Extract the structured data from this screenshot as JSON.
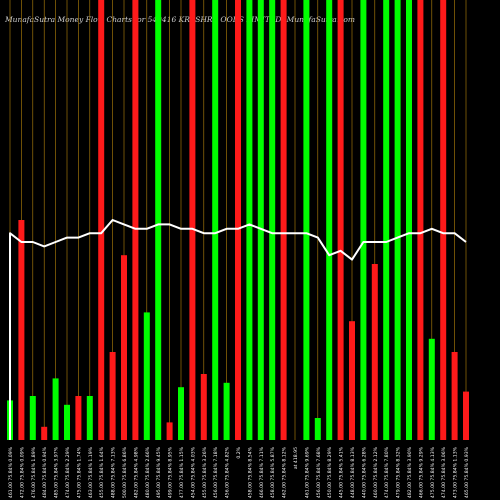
{
  "title": "MunafaSutra  Money Flow  Charts for 540416                             KRI                                  SHRE       OODS LIMITED) MunafaSutra.com",
  "colors": {
    "background": "#000000",
    "up": "#00ff00",
    "down": "#ff1a1a",
    "grid": "#b8860b",
    "line": "#ffffff",
    "text": "#ffffff"
  },
  "chart_data": {
    "type": "bar",
    "title": "MunafaSutra  Money Flow  Charts for 540416                             KRI                                  SHRE       OODS LIMITED) MunafaSutra.com",
    "xlabel": "",
    "ylabel": "",
    "ylim": [
      0,
      100
    ],
    "grid": "vertical",
    "categories": [
      "461.00 75.84% 0.09%",
      "472.00 75.84% 0.09%",
      "476.00 75.84% 1.89%",
      "484.00 75.84% 0.94%",
      "485.00 75.84% 3.97%",
      "474.00 75.84% 2.29%",
      "475.00 75.84% 1.74%",
      "463.00 75.84% 1.19%",
      "455.00 75.84% 1.64%",
      "488.00 75.84% 7.13%",
      "500.00 75.84% 6.86%",
      "482.00 75.84% 4.98%",
      "480.00 75.84% 2.66%",
      "495.00 75.84% 9.45%",
      "499.00 75.84% 8.95%",
      "477.00 75.84% 1.15%",
      "454.00 75.84% 4.03%",
      "455.00 75.84% 3.26%",
      "456.00 75.84% 7.18%",
      "456.00 75.84% 4.82%",
      "0.2%",
      "458.00 75.84% 8.54%",
      "466.00 75.84% 7.11%",
      "458.00 75.84% 5.87%",
      "462.00 75.84% 8.12%",
      "at 418.95",
      "461.00 75.84% 9.69%",
      "456.00 75.84% 7.68%",
      "450.00 75.84% 8.29%",
      "445.00 75.84% 5.41%",
      "448.00 75.84% 8.13%",
      "440.00 75.84% 6.28%",
      "460.00 75.84% 2.12%",
      "474.00 75.84% 7.80%",
      "479.00 75.84% 8.32%",
      "482.00 75.84% 3.90%",
      "466.00 75.84% 9.29%",
      "475.00 75.84% 4.13%",
      "474.00 75.84% 3.06%",
      "473.00 75.84% 1.13%",
      "465.00 75.84% 0.93%"
    ],
    "series": [
      {
        "values": [
          9,
          50,
          10,
          3,
          14,
          8,
          10,
          10,
          100,
          20,
          42,
          100,
          29,
          100,
          4,
          12,
          100,
          15,
          100,
          13,
          100,
          100,
          100,
          100,
          100,
          0,
          100,
          5,
          100,
          100,
          27,
          100,
          40,
          100,
          100,
          100,
          100,
          23,
          100,
          20,
          11
        ],
        "directions": [
          "up",
          "down",
          "up",
          "down",
          "up",
          "up",
          "down",
          "up",
          "down",
          "down",
          "down",
          "down",
          "up",
          "up",
          "down",
          "up",
          "down",
          "down",
          "up",
          "up",
          "down",
          "up",
          "up",
          "up",
          "down",
          "up",
          "up",
          "up",
          "up",
          "down",
          "down",
          "up",
          "down",
          "up",
          "up",
          "up",
          "down",
          "up",
          "down",
          "down",
          "down"
        ]
      },
      {
        "values": [
          47,
          45,
          45,
          44,
          45,
          46,
          46,
          47,
          47,
          50,
          49,
          48,
          48,
          49,
          49,
          48,
          48,
          47,
          47,
          48,
          48,
          49,
          48,
          47,
          47,
          47,
          47,
          46,
          42,
          43,
          41,
          45,
          45,
          45,
          46,
          47,
          47,
          48,
          47,
          47,
          45
        ]
      }
    ],
    "line_start_value": 0
  }
}
